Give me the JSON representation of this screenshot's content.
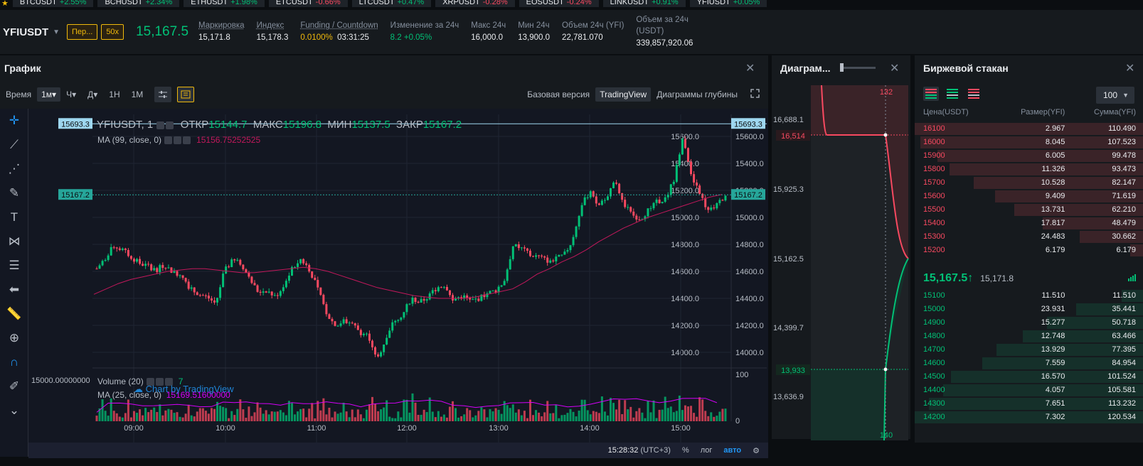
{
  "ticker": [
    {
      "sym": "BTCUSDT",
      "chg": "+2.55%"
    },
    {
      "sym": "BCHUSDT",
      "chg": "+2.34%"
    },
    {
      "sym": "ETHUSDT",
      "chg": "+1.98%"
    },
    {
      "sym": "ETCUSDT",
      "chg": "-0.66%"
    },
    {
      "sym": "LTCUSDT",
      "chg": "+0.47%"
    },
    {
      "sym": "XRPUSDT",
      "chg": "-0.28%"
    },
    {
      "sym": "EOSUSDT",
      "chg": "-0.24%"
    },
    {
      "sym": "LINKUSDT",
      "chg": "+0.91%"
    },
    {
      "sym": "YFIUSDT",
      "chg": "+0.05%"
    }
  ],
  "header": {
    "symbol": "YFIUSDT",
    "mode_pill": "Пер...",
    "leverage_pill": "50x",
    "last_price": "15,167.5",
    "stats": [
      {
        "label": "Маркировка",
        "value": "15,171.8"
      },
      {
        "label": "Индекс",
        "value": "15,178.3"
      },
      {
        "label": "Funding / Countdown",
        "value": "0.0100%",
        "value2": "03:31:25"
      },
      {
        "label": "Изменение за 24ч",
        "value": "8.2 +0.05%"
      },
      {
        "label": "Макс 24ч",
        "value": "16,000.0"
      },
      {
        "label": "Мин 24ч",
        "value": "13,900.0"
      },
      {
        "label": "Объем 24ч (YFI)",
        "value": "22,781.070"
      },
      {
        "label": "Объем за 24ч (USDT)",
        "value": "339,857,920.06"
      }
    ]
  },
  "chart_panel": {
    "title": "График",
    "time_label": "Время",
    "tf_active": "1м",
    "tf_hour": "Ч",
    "tf_day": "Д",
    "tf_week": "1Н",
    "tf_month": "1М",
    "tab_basic": "Базовая версия",
    "tab_tv": "TradingView",
    "tab_depth": "Диаграммы глубины",
    "legend_symbol": "YFIUSDT, 1",
    "legend_o_lbl": "ОТКР",
    "legend_o": "15144.7",
    "legend_h_lbl": "МАКС",
    "legend_h": "15196.8",
    "legend_l_lbl": "МИН",
    "legend_l": "15137.5",
    "legend_c_lbl": "ЗАКР",
    "legend_c": "15167.2",
    "ma_label": "MA (99, close, 0)",
    "ma_value": "15156.75252525",
    "vol_label": "Volume (20)",
    "vol_value": "7",
    "vol_ma_label": "MA (25, close, 0)",
    "vol_ma_value": "15169.51600000",
    "vol_axis_label": "15000.00000000",
    "watermark": "Chart by TradingView",
    "bottom_time": "15:28:32",
    "bottom_tz": "(UTC+3)",
    "bottom_pct": "%",
    "bottom_log": "лог",
    "bottom_auto": "авто"
  },
  "chart_data": {
    "type": "candlestick",
    "title": "YFIUSDT, 1",
    "x_ticks": [
      "09:00",
      "10:00",
      "11:00",
      "12:00",
      "13:00",
      "14:00",
      "15:00"
    ],
    "y_ticks": [
      14000,
      14200,
      14400,
      14600,
      14800,
      15000,
      15200,
      15400,
      15600
    ],
    "y_range": [
      13900,
      15700
    ],
    "price_line_top": 15693.3,
    "price_line_last": 15167.2,
    "volume_ticks": [
      0,
      100
    ],
    "price_path": [
      14620,
      14700,
      14790,
      14760,
      14710,
      14660,
      14640,
      14610,
      14650,
      14590,
      14580,
      14470,
      14430,
      14410,
      14360,
      14600,
      14680,
      14660,
      14540,
      14450,
      14460,
      14410,
      14490,
      14620,
      14690,
      14620,
      14470,
      14300,
      14200,
      14230,
      14220,
      14150,
      14120,
      13950,
      14100,
      14240,
      14280,
      14400,
      14370,
      14410,
      14480,
      14500,
      14390,
      14420,
      14380,
      14400,
      14440,
      14460,
      14540,
      14790,
      14770,
      14720,
      14710,
      14680,
      14690,
      14720,
      14830,
      15080,
      15190,
      15080,
      15160,
      15260,
      15100,
      15020,
      14990,
      15060,
      15120,
      15140,
      15290,
      15620,
      15290,
      15180,
      15040,
      15090,
      15170
    ],
    "ma_path": [
      14430,
      14470,
      14510,
      14540,
      14560,
      14580,
      14600,
      14610,
      14620,
      14620,
      14610,
      14600,
      14590,
      14590,
      14600,
      14610,
      14620,
      14630,
      14620,
      14600,
      14570,
      14540,
      14510,
      14480,
      14460,
      14440,
      14420,
      14410,
      14400,
      14400,
      14400,
      14410,
      14430,
      14450,
      14470,
      14520,
      14580,
      14620,
      14670,
      14710,
      14760,
      14820,
      14870,
      14920,
      14960,
      15000,
      15030,
      15060,
      15090,
      15120,
      15150,
      15170
    ]
  },
  "depth_panel": {
    "title": "Диаграм...",
    "y_labels": [
      "16,688.1",
      "15,925.3",
      "15,162.5",
      "14,399.7",
      "13,636.9"
    ],
    "ask_marker": "16,514",
    "bid_marker": "13,933",
    "top_count": "132",
    "bottom_count": "140"
  },
  "orderbook": {
    "title": "Биржевой стакан",
    "group": "100",
    "col_price": "Цена(USDT)",
    "col_size": "Размер(YFI)",
    "col_sum": "Сумма(YFI)",
    "asks": [
      {
        "price": "16100",
        "size": "2.967",
        "sum": "110.490",
        "depth": 1.0
      },
      {
        "price": "16000",
        "size": "8.045",
        "sum": "107.523",
        "depth": 0.974
      },
      {
        "price": "15900",
        "size": "6.005",
        "sum": "99.478",
        "depth": 0.9
      },
      {
        "price": "15800",
        "size": "11.326",
        "sum": "93.473",
        "depth": 0.846
      },
      {
        "price": "15700",
        "size": "10.528",
        "sum": "82.147",
        "depth": 0.743
      },
      {
        "price": "15600",
        "size": "9.409",
        "sum": "71.619",
        "depth": 0.648
      },
      {
        "price": "15500",
        "size": "13.731",
        "sum": "62.210",
        "depth": 0.563
      },
      {
        "price": "15400",
        "size": "17.817",
        "sum": "48.479",
        "depth": 0.439
      },
      {
        "price": "15300",
        "size": "24.483",
        "sum": "30.662",
        "depth": 0.278
      },
      {
        "price": "15200",
        "size": "6.179",
        "sum": "6.179",
        "depth": 0.056
      }
    ],
    "mid_price": "15,167.5",
    "mid_arrow": "↑",
    "mark_price": "15,171.8",
    "bids": [
      {
        "price": "15100",
        "size": "11.510",
        "sum": "11.510",
        "depth": 0.095
      },
      {
        "price": "15000",
        "size": "23.931",
        "sum": "35.441",
        "depth": 0.294
      },
      {
        "price": "14900",
        "size": "15.277",
        "sum": "50.718",
        "depth": 0.421
      },
      {
        "price": "14800",
        "size": "12.748",
        "sum": "63.466",
        "depth": 0.527
      },
      {
        "price": "14700",
        "size": "13.929",
        "sum": "77.395",
        "depth": 0.642
      },
      {
        "price": "14600",
        "size": "7.559",
        "sum": "84.954",
        "depth": 0.705
      },
      {
        "price": "14500",
        "size": "16.570",
        "sum": "101.524",
        "depth": 0.842
      },
      {
        "price": "14400",
        "size": "4.057",
        "sum": "105.581",
        "depth": 0.876
      },
      {
        "price": "14300",
        "size": "7.651",
        "sum": "113.232",
        "depth": 0.939
      },
      {
        "price": "14200",
        "size": "7.302",
        "sum": "120.534",
        "depth": 1.0
      }
    ]
  },
  "colors": {
    "up": "#02c076",
    "down": "#f84960",
    "accent": "#f0b90b",
    "ma": "#c2185b",
    "link": "#2196f3"
  }
}
